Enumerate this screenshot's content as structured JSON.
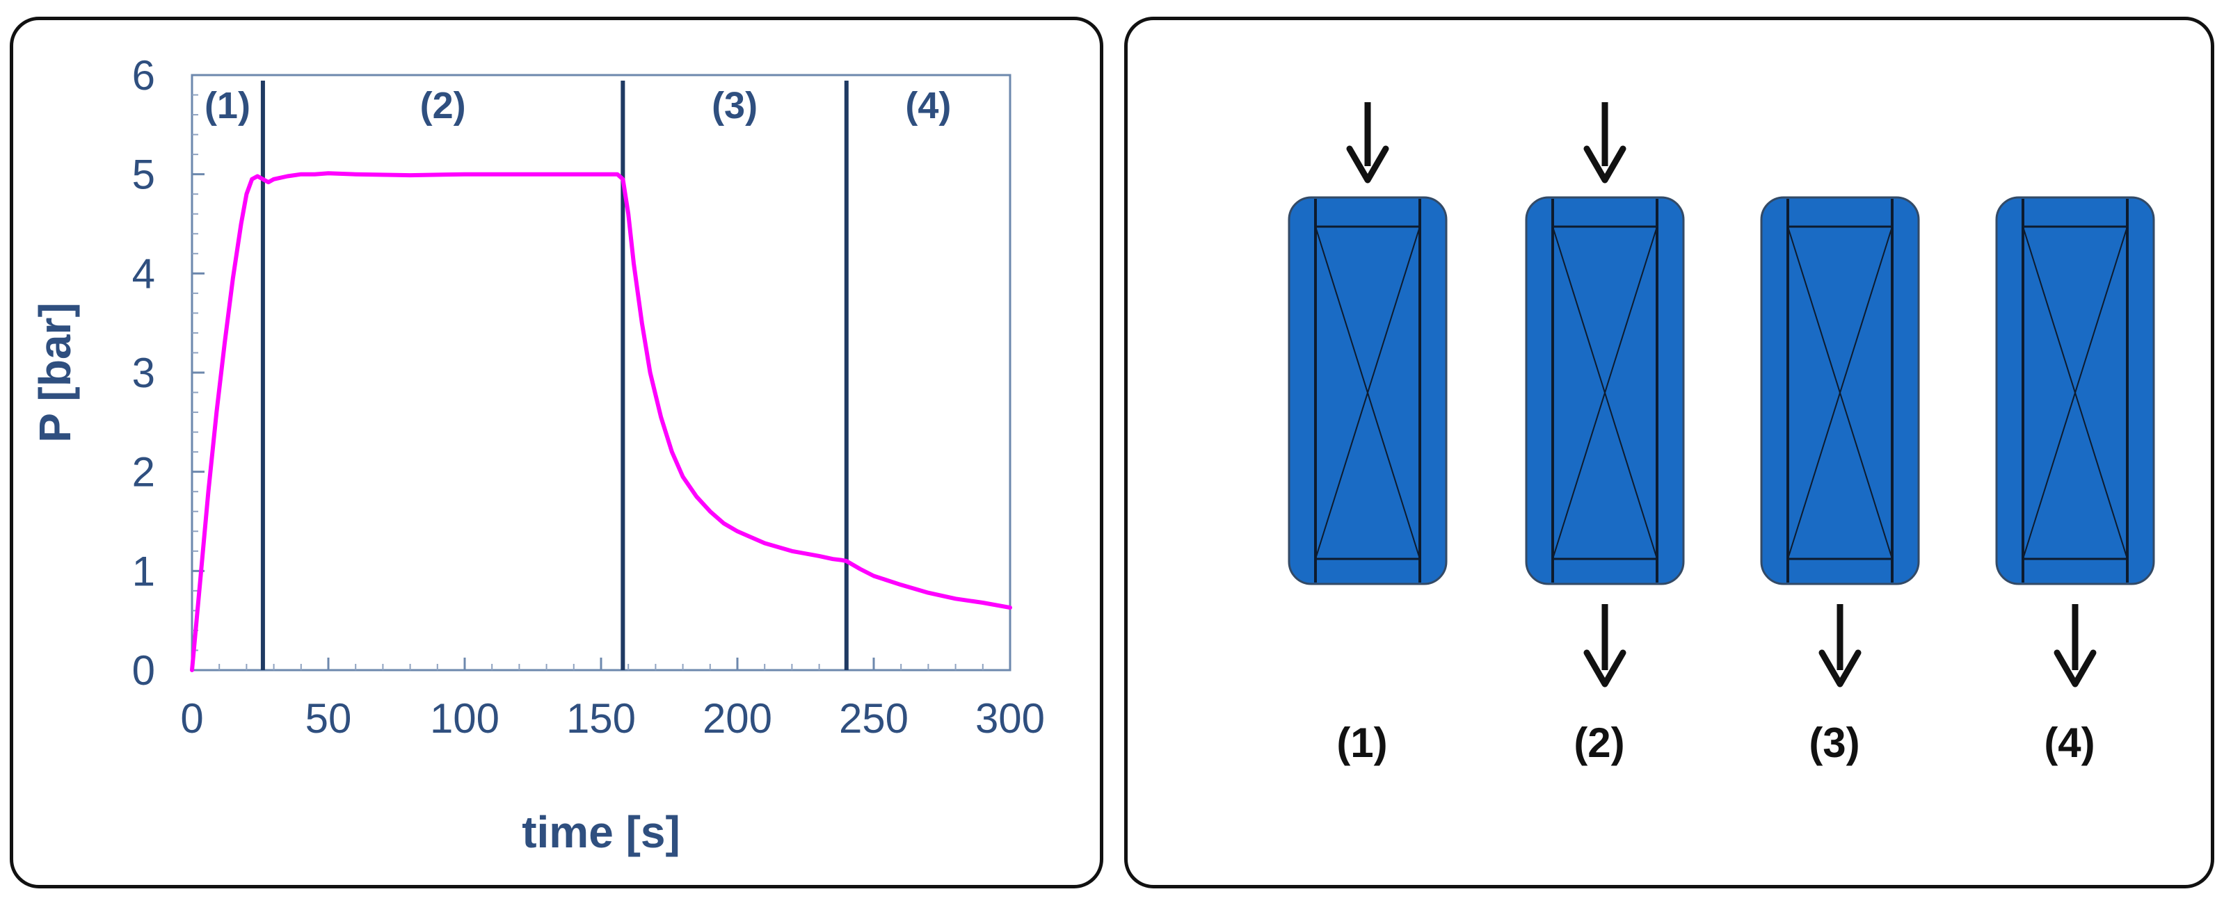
{
  "chart_data": {
    "type": "line",
    "xlabel": "time [s]",
    "ylabel": "P [bar]",
    "xlim": [
      0,
      300
    ],
    "ylim": [
      0,
      6
    ],
    "x_ticks": [
      "0",
      "50",
      "100",
      "150",
      "200",
      "250",
      "300"
    ],
    "y_ticks": [
      "0",
      "1",
      "2",
      "3",
      "4",
      "5",
      "6"
    ],
    "grid": false,
    "line_color": "#ff00ff",
    "phase_line_color": "#1f3a63",
    "phases": [
      {
        "label": "(1)",
        "start": 0,
        "end": 26
      },
      {
        "label": "(2)",
        "start": 26,
        "end": 158
      },
      {
        "label": "(3)",
        "start": 158,
        "end": 240
      },
      {
        "label": "(4)",
        "start": 240,
        "end": 300
      }
    ],
    "series": [
      {
        "x": [
          0,
          3,
          6,
          9,
          12,
          15,
          18,
          20,
          22,
          24,
          26,
          28,
          30,
          35,
          40,
          45,
          50,
          60,
          80,
          100,
          120,
          140,
          150,
          156,
          158,
          160,
          162,
          165,
          168,
          172,
          176,
          180,
          185,
          190,
          195,
          200,
          210,
          220,
          230,
          235,
          238,
          240,
          245,
          250,
          260,
          270,
          280,
          290,
          300
        ],
        "y": [
          0.0,
          0.9,
          1.8,
          2.6,
          3.3,
          3.95,
          4.5,
          4.8,
          4.95,
          4.98,
          4.95,
          4.92,
          4.95,
          4.98,
          5.0,
          5.0,
          5.01,
          5.0,
          4.99,
          5.0,
          5.0,
          5.0,
          5.0,
          5.0,
          4.95,
          4.6,
          4.1,
          3.5,
          3.0,
          2.55,
          2.2,
          1.95,
          1.75,
          1.6,
          1.48,
          1.4,
          1.28,
          1.2,
          1.15,
          1.12,
          1.11,
          1.1,
          1.02,
          0.95,
          0.86,
          0.78,
          0.72,
          0.68,
          0.63
        ]
      }
    ]
  },
  "columns": {
    "fill_color": "#1a6bc4",
    "stroke_color": "#0d1b2e",
    "items": [
      {
        "label": "(1)",
        "flow_in": true,
        "flow_out": false
      },
      {
        "label": "(2)",
        "flow_in": true,
        "flow_out": true
      },
      {
        "label": "(3)",
        "flow_in": false,
        "flow_out": true
      },
      {
        "label": "(4)",
        "flow_in": false,
        "flow_out": true
      }
    ]
  }
}
